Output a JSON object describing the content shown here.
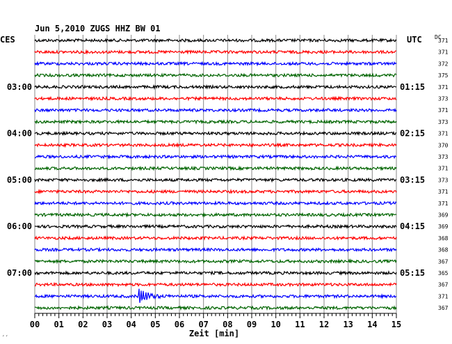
{
  "header": {
    "title": "Jun 5,2010   ZUGS HHZ BW 01",
    "left_label": "CES",
    "right_label": "UTC",
    "dc_label": "DC",
    "corner_mark": "´´"
  },
  "chart_data": {
    "type": "line",
    "xlabel": "Zeit [min]",
    "xlim": [
      0,
      15
    ],
    "x_ticks": [
      "00",
      "01",
      "02",
      "03",
      "04",
      "05",
      "06",
      "07",
      "08",
      "09",
      "10",
      "11",
      "12",
      "13",
      "14",
      "15"
    ],
    "trace_colors": [
      "#000000",
      "#ff0000",
      "#0000ff",
      "#006400"
    ],
    "traces": 24,
    "left_time_labels": [
      {
        "trace": 4,
        "label": "03:00"
      },
      {
        "trace": 8,
        "label": "04:00"
      },
      {
        "trace": 12,
        "label": "05:00"
      },
      {
        "trace": 16,
        "label": "06:00"
      },
      {
        "trace": 20,
        "label": "07:00"
      }
    ],
    "right_time_labels": [
      {
        "trace": 4,
        "label": "01:15"
      },
      {
        "trace": 8,
        "label": "02:15"
      },
      {
        "trace": 12,
        "label": "03:15"
      },
      {
        "trace": 16,
        "label": "04:15"
      },
      {
        "trace": 20,
        "label": "05:15"
      }
    ],
    "dc_values": [
      "371",
      "371",
      "372",
      "375",
      "371",
      "373",
      "371",
      "373",
      "371",
      "370",
      "373",
      "371",
      "373",
      "371",
      "371",
      "369",
      "369",
      "368",
      "368",
      "367",
      "365",
      "367",
      "371",
      "367"
    ],
    "event": {
      "trace": 22,
      "start_min": 4.3,
      "description": "seismic event"
    }
  }
}
